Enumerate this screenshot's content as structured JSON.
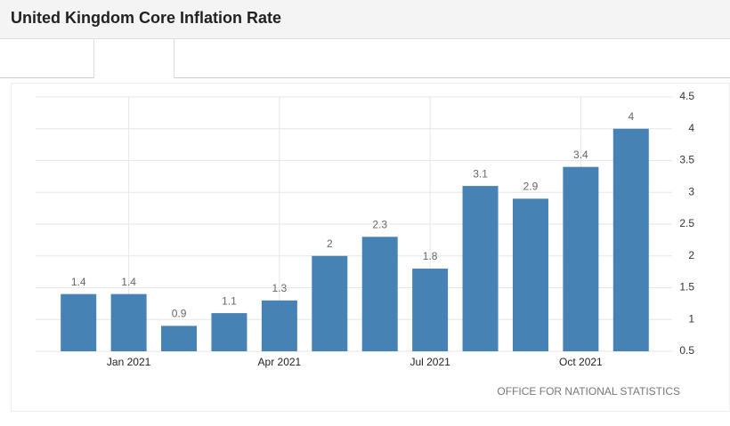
{
  "chart_data": {
    "type": "bar",
    "title": "United Kingdom Core Inflation Rate",
    "categories": [
      null,
      "Jan 2021",
      null,
      null,
      "Apr 2021",
      null,
      null,
      "Jul 2021",
      null,
      null,
      "Oct 2021",
      null
    ],
    "values": [
      1.4,
      1.4,
      0.9,
      1.1,
      1.3,
      2,
      2.3,
      1.8,
      3.1,
      2.9,
      3.4,
      4
    ],
    "color": "#4682b4",
    "ylim": [
      0.5,
      4.5
    ],
    "yticks": [
      0.5,
      1,
      1.5,
      2,
      2.5,
      3,
      3.5,
      4,
      4.5
    ],
    "grid": true,
    "source": "OFFICE FOR NATIONAL STATISTICS"
  }
}
